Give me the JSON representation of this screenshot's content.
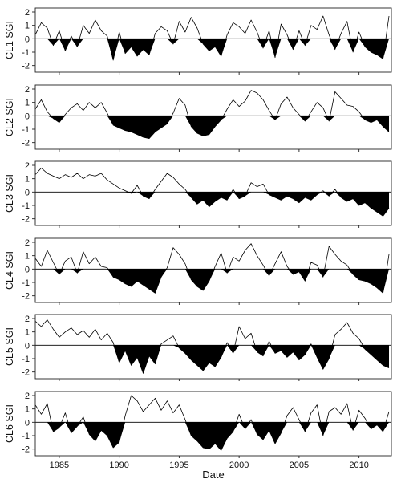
{
  "chart_data": {
    "type": "area",
    "xlabel": "Date",
    "xlim": [
      1983.0,
      2012.7
    ],
    "x_ticks": [
      1985,
      1990,
      1995,
      2000,
      2005,
      2010
    ],
    "x_tick_labels": [
      "1985",
      "1990",
      "1995",
      "2000",
      "2005",
      "2010"
    ],
    "ylim": [
      -2.5,
      2.3
    ],
    "y_ticks": [
      -2,
      -1,
      0,
      1,
      2
    ],
    "y_tick_labels": [
      "-2",
      "-1",
      "0",
      "1",
      "2"
    ],
    "fill_below_zero": true,
    "panels": [
      {
        "ylabel": "CL1 SGI",
        "x": [
          1983.0,
          1983.5,
          1984.0,
          1984.5,
          1985.0,
          1985.5,
          1986.0,
          1986.5,
          1987.0,
          1987.5,
          1988.0,
          1988.5,
          1989.0,
          1989.5,
          1990.0,
          1990.5,
          1991.0,
          1991.5,
          1992.0,
          1992.5,
          1993.0,
          1993.5,
          1994.0,
          1994.5,
          1995.0,
          1995.5,
          1996.0,
          1996.5,
          1997.0,
          1997.5,
          1998.0,
          1998.5,
          1999.0,
          1999.5,
          2000.0,
          2000.5,
          2001.0,
          2001.5,
          2002.0,
          2002.5,
          2003.0,
          2003.5,
          2004.0,
          2004.5,
          2005.0,
          2005.5,
          2006.0,
          2006.5,
          2007.0,
          2007.5,
          2008.0,
          2008.5,
          2009.0,
          2009.5,
          2010.0,
          2010.5,
          2011.0,
          2011.5,
          2012.0,
          2012.5
        ],
        "values": [
          0.3,
          1.2,
          0.8,
          -0.5,
          0.6,
          -0.9,
          0.2,
          -0.6,
          1.0,
          0.4,
          1.4,
          0.6,
          0.2,
          -1.6,
          0.5,
          -1.1,
          -0.6,
          -1.3,
          -0.8,
          -1.2,
          0.4,
          0.9,
          0.6,
          -0.4,
          1.3,
          0.5,
          1.6,
          0.8,
          -0.4,
          -0.9,
          -0.6,
          -1.3,
          0.3,
          1.2,
          0.9,
          0.4,
          1.4,
          0.5,
          -0.7,
          0.6,
          -1.4,
          1.1,
          0.3,
          -0.8,
          0.6,
          -0.5,
          1.0,
          0.7,
          1.7,
          0.3,
          -0.8,
          0.4,
          1.3,
          -1.0,
          0.5,
          -0.6,
          -1.0,
          -1.2,
          -1.5,
          1.7
        ]
      },
      {
        "ylabel": "CL2 SGI",
        "x": [
          1983.0,
          1983.5,
          1984.0,
          1984.5,
          1985.0,
          1985.5,
          1986.0,
          1986.5,
          1987.0,
          1987.5,
          1988.0,
          1988.5,
          1989.0,
          1989.5,
          1990.0,
          1990.5,
          1991.0,
          1991.5,
          1992.0,
          1992.5,
          1993.0,
          1993.5,
          1994.0,
          1994.5,
          1995.0,
          1995.5,
          1996.0,
          1996.5,
          1997.0,
          1997.5,
          1998.0,
          1998.5,
          1999.0,
          1999.5,
          2000.0,
          2000.5,
          2001.0,
          2001.5,
          2002.0,
          2002.5,
          2003.0,
          2003.5,
          2004.0,
          2004.5,
          2005.0,
          2005.5,
          2006.0,
          2006.5,
          2007.0,
          2007.5,
          2008.0,
          2008.5,
          2009.0,
          2009.5,
          2010.0,
          2010.5,
          2011.0,
          2011.5,
          2012.0,
          2012.5
        ],
        "values": [
          0.5,
          1.2,
          0.3,
          -0.2,
          -0.5,
          0.1,
          0.6,
          0.9,
          0.4,
          1.0,
          0.6,
          1.0,
          0.2,
          -0.7,
          -0.9,
          -1.1,
          -1.2,
          -1.4,
          -1.6,
          -1.7,
          -1.2,
          -0.9,
          -0.6,
          0.2,
          1.3,
          0.8,
          -0.8,
          -1.3,
          -1.5,
          -1.4,
          -0.8,
          -0.3,
          0.5,
          1.2,
          0.7,
          1.1,
          1.9,
          1.7,
          1.2,
          0.4,
          -0.3,
          0.9,
          1.4,
          0.6,
          0.1,
          -0.4,
          0.3,
          1.0,
          0.6,
          -0.4,
          1.8,
          1.3,
          0.8,
          0.7,
          0.3,
          -0.3,
          -0.5,
          -0.3,
          -0.8,
          -1.2
        ]
      },
      {
        "ylabel": "CL3 SGI",
        "x": [
          1983.0,
          1983.5,
          1984.0,
          1984.5,
          1985.0,
          1985.5,
          1986.0,
          1986.5,
          1987.0,
          1987.5,
          1988.0,
          1988.5,
          1989.0,
          1989.5,
          1990.0,
          1990.5,
          1991.0,
          1991.5,
          1992.0,
          1992.5,
          1993.0,
          1993.5,
          1994.0,
          1994.5,
          1995.0,
          1995.5,
          1996.0,
          1996.5,
          1997.0,
          1997.5,
          1998.0,
          1998.5,
          1999.0,
          1999.5,
          2000.0,
          2000.5,
          2001.0,
          2001.5,
          2002.0,
          2002.5,
          2003.0,
          2003.5,
          2004.0,
          2004.5,
          2005.0,
          2005.5,
          2006.0,
          2006.5,
          2007.0,
          2007.5,
          2008.0,
          2008.5,
          2009.0,
          2009.5,
          2010.0,
          2010.5,
          2011.0,
          2011.5,
          2012.0,
          2012.5
        ],
        "values": [
          1.3,
          1.8,
          1.4,
          1.2,
          1.0,
          1.3,
          1.1,
          1.4,
          1.0,
          1.3,
          1.2,
          1.4,
          0.9,
          0.6,
          0.3,
          0.1,
          -0.1,
          0.5,
          -0.3,
          -0.5,
          0.2,
          0.8,
          1.4,
          1.1,
          0.6,
          0.2,
          -0.4,
          -0.9,
          -0.6,
          -1.1,
          -0.7,
          -0.4,
          -0.6,
          0.2,
          -0.5,
          -0.3,
          0.7,
          0.4,
          0.6,
          -0.2,
          -0.4,
          -0.6,
          -0.3,
          -0.5,
          -0.8,
          -0.4,
          -0.6,
          -0.2,
          0.1,
          -0.3,
          0.2,
          -0.4,
          -0.7,
          -0.5,
          -1.0,
          -0.8,
          -1.2,
          -1.5,
          -1.8,
          -1.2
        ]
      },
      {
        "ylabel": "CL4 SGI",
        "x": [
          1983.0,
          1983.5,
          1984.0,
          1984.5,
          1985.0,
          1985.5,
          1986.0,
          1986.5,
          1987.0,
          1987.5,
          1988.0,
          1988.5,
          1989.0,
          1989.5,
          1990.0,
          1990.5,
          1991.0,
          1991.5,
          1992.0,
          1992.5,
          1993.0,
          1993.5,
          1994.0,
          1994.5,
          1995.0,
          1995.5,
          1996.0,
          1996.5,
          1997.0,
          1997.5,
          1998.0,
          1998.5,
          1999.0,
          1999.5,
          2000.0,
          2000.5,
          2001.0,
          2001.5,
          2002.0,
          2002.5,
          2003.0,
          2003.5,
          2004.0,
          2004.5,
          2005.0,
          2005.5,
          2006.0,
          2006.5,
          2007.0,
          2007.5,
          2008.0,
          2008.5,
          2009.0,
          2009.5,
          2010.0,
          2010.5,
          2011.0,
          2011.5,
          2012.0,
          2012.5
        ],
        "values": [
          0.8,
          0.2,
          1.4,
          0.5,
          -0.4,
          0.6,
          0.9,
          -0.3,
          1.3,
          0.4,
          0.9,
          0.2,
          0.1,
          -0.6,
          -0.8,
          -1.1,
          -1.3,
          -0.9,
          -1.2,
          -1.5,
          -1.8,
          -0.6,
          0.1,
          1.6,
          1.1,
          0.4,
          -0.8,
          -1.3,
          -1.6,
          -0.9,
          0.2,
          1.2,
          -0.3,
          0.9,
          0.6,
          1.4,
          1.9,
          1.0,
          0.3,
          -0.5,
          0.4,
          1.3,
          0.2,
          -0.4,
          -0.2,
          -0.9,
          0.5,
          0.3,
          -0.6,
          1.7,
          1.1,
          0.6,
          0.3,
          -0.4,
          -0.8,
          -0.9,
          -1.1,
          -1.4,
          -1.8,
          1.1
        ]
      },
      {
        "ylabel": "CL5 SGI",
        "x": [
          1983.0,
          1983.5,
          1984.0,
          1984.5,
          1985.0,
          1985.5,
          1986.0,
          1986.5,
          1987.0,
          1987.5,
          1988.0,
          1988.5,
          1989.0,
          1989.5,
          1990.0,
          1990.5,
          1991.0,
          1991.5,
          1992.0,
          1992.5,
          1993.0,
          1993.5,
          1994.0,
          1994.5,
          1995.0,
          1995.5,
          1996.0,
          1996.5,
          1997.0,
          1997.5,
          1998.0,
          1998.5,
          1999.0,
          1999.5,
          2000.0,
          2000.5,
          2001.0,
          2001.5,
          2002.0,
          2002.5,
          2003.0,
          2003.5,
          2004.0,
          2004.5,
          2005.0,
          2005.5,
          2006.0,
          2006.5,
          2007.0,
          2007.5,
          2008.0,
          2008.5,
          2009.0,
          2009.5,
          2010.0,
          2010.5,
          2011.0,
          2011.5,
          2012.0,
          2012.5
        ],
        "values": [
          1.8,
          1.4,
          1.9,
          1.2,
          0.6,
          1.0,
          1.3,
          0.8,
          1.1,
          0.6,
          1.2,
          0.4,
          0.9,
          0.2,
          -1.3,
          -0.4,
          -1.5,
          -0.9,
          -2.1,
          -0.8,
          -1.4,
          0.1,
          0.4,
          0.7,
          -0.2,
          -0.6,
          -1.1,
          -1.5,
          -1.9,
          -1.3,
          -1.6,
          -0.9,
          0.2,
          -0.6,
          1.4,
          0.5,
          0.9,
          -0.5,
          -0.8,
          0.3,
          -0.6,
          -0.4,
          -0.9,
          -0.5,
          -1.1,
          -0.7,
          0.1,
          -0.9,
          -1.8,
          -1.0,
          0.8,
          1.2,
          1.7,
          0.9,
          0.5,
          -0.3,
          -0.7,
          -1.1,
          -1.5,
          -1.7
        ]
      },
      {
        "ylabel": "CL6 SGI",
        "x": [
          1983.0,
          1983.5,
          1984.0,
          1984.5,
          1985.0,
          1985.5,
          1986.0,
          1986.5,
          1987.0,
          1987.5,
          1988.0,
          1988.5,
          1989.0,
          1989.5,
          1990.0,
          1990.5,
          1991.0,
          1991.5,
          1992.0,
          1992.5,
          1993.0,
          1993.5,
          1994.0,
          1994.5,
          1995.0,
          1995.5,
          1996.0,
          1996.5,
          1997.0,
          1997.5,
          1998.0,
          1998.5,
          1999.0,
          1999.5,
          2000.0,
          2000.5,
          2001.0,
          2001.5,
          2002.0,
          2002.5,
          2003.0,
          2003.5,
          2004.0,
          2004.5,
          2005.0,
          2005.5,
          2006.0,
          2006.5,
          2007.0,
          2007.5,
          2008.0,
          2008.5,
          2009.0,
          2009.5,
          2010.0,
          2010.5,
          2011.0,
          2011.5,
          2012.0,
          2012.5
        ],
        "values": [
          1.3,
          0.6,
          1.4,
          -0.7,
          -0.4,
          0.7,
          -0.8,
          -0.3,
          0.4,
          -0.9,
          -1.4,
          -0.6,
          -1.0,
          -1.9,
          -1.5,
          0.5,
          2.0,
          1.6,
          0.8,
          1.3,
          1.8,
          0.9,
          1.6,
          0.7,
          1.3,
          0.2,
          -1.0,
          -1.4,
          -1.9,
          -2.0,
          -1.6,
          -2.1,
          -1.2,
          -0.7,
          0.6,
          -0.5,
          0.2,
          -0.9,
          -1.3,
          -0.6,
          -1.6,
          -0.8,
          0.5,
          1.1,
          0.2,
          -0.7,
          0.7,
          1.3,
          -1.0,
          0.8,
          1.1,
          0.6,
          1.4,
          -0.6,
          0.9,
          0.3,
          -0.5,
          -0.2,
          -0.7,
          0.8
        ]
      }
    ]
  }
}
